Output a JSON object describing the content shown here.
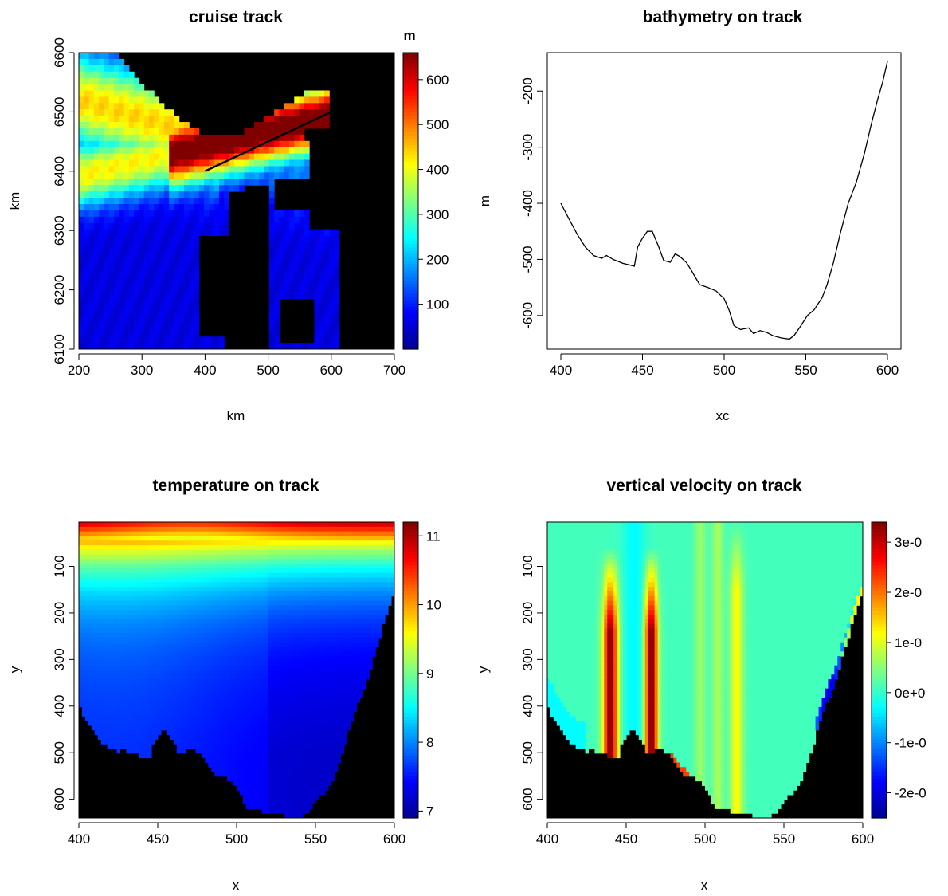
{
  "colors": {
    "background": "#ffffff",
    "land": "#000000",
    "line": "#000000",
    "palette": [
      "#00008F",
      "#0000FF",
      "#0080FF",
      "#00FFFF",
      "#80FF80",
      "#FFFF00",
      "#FF8000",
      "#FF0000",
      "#800000"
    ]
  },
  "chart_data": [
    {
      "type": "heatmap",
      "title": "cruise track",
      "xlabel": "km",
      "ylabel": "km",
      "xlim": [
        200,
        700
      ],
      "ylim": [
        6100,
        6600
      ],
      "x_ticks": [
        "200",
        "300",
        "400",
        "500",
        "600",
        "700"
      ],
      "y_ticks": [
        "6100",
        "6200",
        "6300",
        "6400",
        "6500",
        "6600"
      ],
      "colorbar": {
        "label": "m",
        "range": [
          0,
          660
        ],
        "ticks": [
          "100",
          "200",
          "300",
          "400",
          "500",
          "600"
        ]
      },
      "track": {
        "x": [
          400,
          600
        ],
        "y": [
          6400,
          6500
        ]
      },
      "land_color": "#000000"
    },
    {
      "type": "line",
      "title": "bathymetry on track",
      "xlabel": "xc",
      "ylabel": "m",
      "xlim": [
        400,
        600
      ],
      "ylim": [
        -640,
        -140
      ],
      "x_ticks": [
        "400",
        "450",
        "500",
        "550",
        "600"
      ],
      "y_ticks": [
        "-200",
        "-300",
        "-400",
        "-500",
        "-600"
      ],
      "x": [
        400,
        405,
        410,
        415,
        420,
        425,
        428,
        432,
        438,
        445,
        447,
        450,
        453,
        456,
        460,
        463,
        467,
        470,
        473,
        477,
        480,
        485,
        490,
        495,
        500,
        503,
        506,
        510,
        515,
        518,
        522,
        526,
        530,
        535,
        540,
        543,
        547,
        551,
        555,
        560,
        563,
        567,
        571,
        576,
        581,
        586,
        590,
        594,
        597,
        600
      ],
      "y": [
        -400,
        -428,
        -455,
        -478,
        -493,
        -498,
        -493,
        -500,
        -507,
        -512,
        -478,
        -462,
        -450,
        -450,
        -478,
        -502,
        -505,
        -490,
        -495,
        -506,
        -520,
        -545,
        -550,
        -556,
        -570,
        -590,
        -618,
        -625,
        -622,
        -632,
        -627,
        -630,
        -636,
        -640,
        -642,
        -635,
        -618,
        -600,
        -590,
        -568,
        -545,
        -505,
        -455,
        -400,
        -362,
        -310,
        -260,
        -215,
        -185,
        -147
      ]
    },
    {
      "type": "heatmap",
      "title": "temperature on track",
      "xlabel": "x",
      "ylabel": "y",
      "xlim": [
        400,
        600
      ],
      "ylim": [
        640,
        5
      ],
      "x_ticks": [
        "400",
        "450",
        "500",
        "550",
        "600"
      ],
      "y_ticks": [
        "100",
        "200",
        "300",
        "400",
        "500",
        "600"
      ],
      "colorbar": {
        "label": "",
        "range": [
          6.9,
          11.2
        ],
        "ticks": [
          "7",
          "8",
          "9",
          "10",
          "11"
        ]
      },
      "land_color": "#000000"
    },
    {
      "type": "heatmap",
      "title": "vertical velocity on track",
      "xlabel": "x",
      "ylabel": "y",
      "xlim": [
        400,
        600
      ],
      "ylim": [
        640,
        5
      ],
      "x_ticks": [
        "400",
        "450",
        "500",
        "550",
        "600"
      ],
      "y_ticks": [
        "100",
        "200",
        "300",
        "400",
        "500",
        "600"
      ],
      "colorbar": {
        "label": "",
        "range": [
          -0.00025,
          0.00034
        ],
        "ticks": [
          "3e-0",
          "2e-0",
          "1e-0",
          "0e+0",
          "-1e-0",
          "-2e-0"
        ]
      },
      "land_color": "#000000"
    }
  ]
}
